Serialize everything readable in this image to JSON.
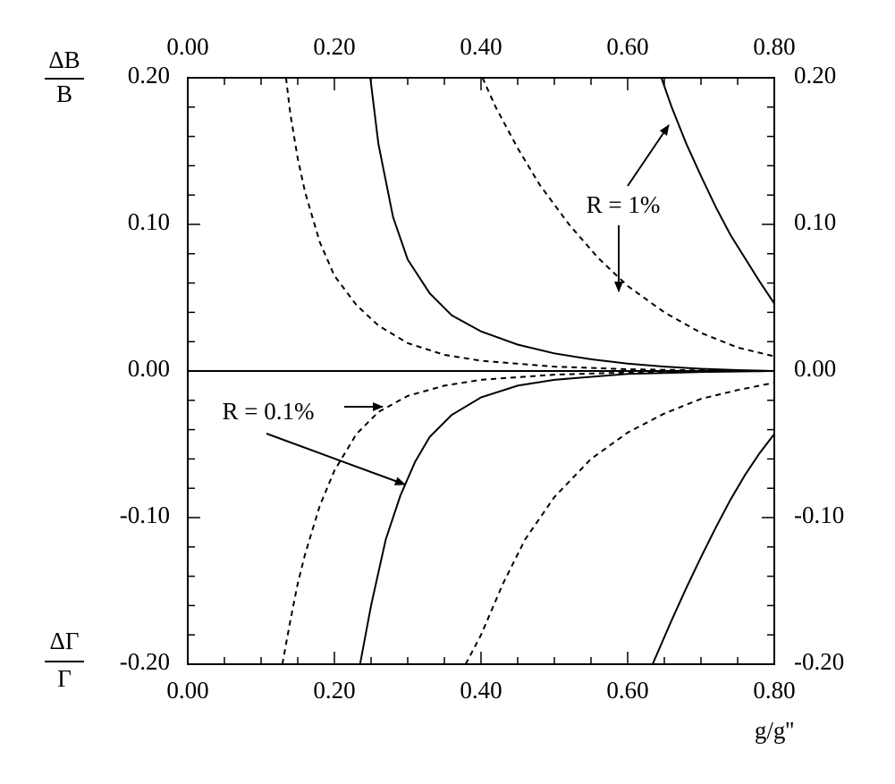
{
  "chart_data": {
    "type": "line",
    "ylabel_top": {
      "numerator": "ΔB",
      "denominator": "B"
    },
    "ylabel_bottom": {
      "numerator": "ΔΓ",
      "denominator": "Γ"
    },
    "xlabel": "g/g''",
    "xlim": [
      0,
      0.8
    ],
    "ylim": [
      -0.2,
      0.2
    ],
    "xticks": [
      {
        "value": 0,
        "label": "0.00"
      },
      {
        "value": 0.2,
        "label": "0.20"
      },
      {
        "value": 0.4,
        "label": "0.40"
      },
      {
        "value": 0.6,
        "label": "0.60"
      },
      {
        "value": 0.8,
        "label": "0.80"
      }
    ],
    "yticks": [
      {
        "value": -0.2,
        "label": "-0.20"
      },
      {
        "value": -0.1,
        "label": "-0.10"
      },
      {
        "value": 0,
        "label": "0.00"
      },
      {
        "value": 0.1,
        "label": "0.10"
      },
      {
        "value": 0.2,
        "label": "0.20"
      }
    ],
    "xminorticks": [
      0.05,
      0.1,
      0.15,
      0.25,
      0.3,
      0.35,
      0.45,
      0.5,
      0.55,
      0.65,
      0.7,
      0.75
    ],
    "yminorticks": [
      -0.18,
      -0.16,
      -0.14,
      -0.12,
      -0.08,
      -0.06,
      -0.04,
      -0.02,
      0.02,
      0.04,
      0.06,
      0.08,
      0.12,
      0.14,
      0.16,
      0.18
    ],
    "annotations": [
      "R = 1%",
      "R = 0.1%"
    ],
    "series": [
      {
        "color": "#000000",
        "style": "solid",
        "x": [
          0,
          0.8
        ],
        "values": [
          0,
          0
        ]
      },
      {
        "color": "#000000",
        "style": "dashed",
        "x": [
          0.134,
          0.14,
          0.15,
          0.16,
          0.18,
          0.2,
          0.23,
          0.26,
          0.3,
          0.35,
          0.4,
          0.5,
          0.6,
          0.7,
          0.8
        ],
        "values": [
          0.2,
          0.175,
          0.145,
          0.122,
          0.088,
          0.065,
          0.045,
          0.031,
          0.019,
          0.011,
          0.007,
          0.003,
          0.0012,
          0.0004,
          0
        ]
      },
      {
        "color": "#000000",
        "style": "solid",
        "x": [
          0.249,
          0.26,
          0.28,
          0.3,
          0.33,
          0.36,
          0.4,
          0.45,
          0.5,
          0.55,
          0.6,
          0.65,
          0.7,
          0.75,
          0.8
        ],
        "values": [
          0.2,
          0.155,
          0.105,
          0.076,
          0.053,
          0.038,
          0.027,
          0.018,
          0.012,
          0.008,
          0.005,
          0.003,
          0.0015,
          0.0006,
          0
        ]
      },
      {
        "color": "#000000",
        "style": "dashed",
        "x": [
          0.402,
          0.42,
          0.45,
          0.48,
          0.52,
          0.56,
          0.6,
          0.65,
          0.7,
          0.75,
          0.8
        ],
        "values": [
          0.2,
          0.18,
          0.152,
          0.127,
          0.1,
          0.077,
          0.058,
          0.04,
          0.026,
          0.016,
          0.01
        ]
      },
      {
        "color": "#000000",
        "style": "solid",
        "x": [
          0.646,
          0.66,
          0.68,
          0.7,
          0.72,
          0.74,
          0.76,
          0.78,
          0.8
        ],
        "values": [
          0.2,
          0.18,
          0.155,
          0.133,
          0.112,
          0.093,
          0.077,
          0.061,
          0.046
        ]
      },
      {
        "color": "#000000",
        "style": "dashed",
        "x": [
          0.129,
          0.14,
          0.15,
          0.16,
          0.18,
          0.2,
          0.23,
          0.26,
          0.3,
          0.35,
          0.4,
          0.5,
          0.6,
          0.7,
          0.8
        ],
        "values": [
          -0.2,
          -0.17,
          -0.145,
          -0.125,
          -0.092,
          -0.068,
          -0.043,
          -0.028,
          -0.017,
          -0.01,
          -0.006,
          -0.0025,
          -0.001,
          -0.0003,
          0
        ]
      },
      {
        "color": "#000000",
        "style": "solid",
        "x": [
          0.235,
          0.25,
          0.27,
          0.29,
          0.31,
          0.33,
          0.36,
          0.4,
          0.45,
          0.5,
          0.6,
          0.7,
          0.8
        ],
        "values": [
          -0.2,
          -0.16,
          -0.115,
          -0.085,
          -0.062,
          -0.045,
          -0.03,
          -0.018,
          -0.01,
          -0.006,
          -0.002,
          -0.0007,
          0
        ]
      },
      {
        "color": "#000000",
        "style": "dashed",
        "x": [
          0.379,
          0.4,
          0.43,
          0.46,
          0.5,
          0.55,
          0.6,
          0.65,
          0.7,
          0.75,
          0.8
        ],
        "values": [
          -0.2,
          -0.18,
          -0.145,
          -0.115,
          -0.086,
          -0.06,
          -0.042,
          -0.029,
          -0.019,
          -0.013,
          -0.008
        ]
      },
      {
        "color": "#000000",
        "style": "solid",
        "x": [
          0.634,
          0.66,
          0.68,
          0.7,
          0.72,
          0.74,
          0.76,
          0.78,
          0.8
        ],
        "values": [
          -0.2,
          -0.17,
          -0.148,
          -0.127,
          -0.107,
          -0.088,
          -0.071,
          -0.056,
          -0.043
        ]
      }
    ]
  }
}
